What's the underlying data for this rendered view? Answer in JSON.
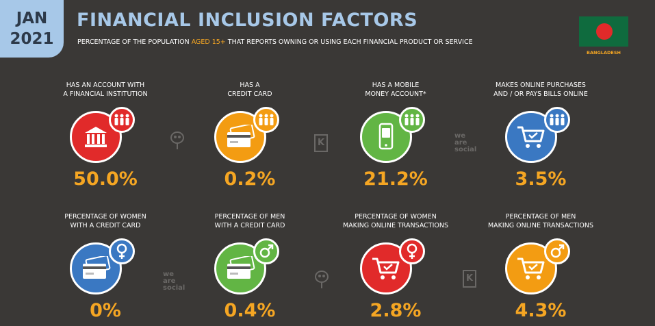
{
  "header": {
    "month": "JAN",
    "year": "2021",
    "title": "FINANCIAL INCLUSION FACTORS",
    "subtitle_pre": "PERCENTAGE OF THE POPULATION ",
    "subtitle_highlight": "AGED 15+",
    "subtitle_post": " THAT REPORTS OWNING OR USING EACH FINANCIAL PRODUCT OR SERVICE",
    "country": "BANGLADESH"
  },
  "colors": {
    "background": "#3a3836",
    "accent_blue": "#a7c8e8",
    "accent_orange": "#f5a623",
    "red": "#e12a2a",
    "orange": "#f39c12",
    "green": "#62b544",
    "blue": "#3a78c2",
    "flag_green": "#0f6b3e"
  },
  "watermarks": {
    "we_are_social": "we\nare\nsocial",
    "kepios": "K"
  },
  "chart_data": {
    "type": "table",
    "title": "FINANCIAL INCLUSION FACTORS",
    "unit": "%",
    "items": [
      {
        "label": "HAS AN ACCOUNT WITH\nA FINANCIAL INSTITUTION",
        "value": 50.0,
        "display": "50.0%",
        "color": "#e12a2a",
        "icon": "bank-icon",
        "badge": "people-icon"
      },
      {
        "label": "HAS A\nCREDIT CARD",
        "value": 0.2,
        "display": "0.2%",
        "color": "#f39c12",
        "icon": "credit-card-icon",
        "badge": "people-icon"
      },
      {
        "label": "HAS A MOBILE\nMONEY ACCOUNT*",
        "value": 21.2,
        "display": "21.2%",
        "color": "#62b544",
        "icon": "mobile-money-icon",
        "badge": "people-icon"
      },
      {
        "label": "MAKES ONLINE PURCHASES\nAND / OR PAYS BILLS ONLINE",
        "value": 3.5,
        "display": "3.5%",
        "color": "#3a78c2",
        "icon": "shopping-cart-icon",
        "badge": "people-icon"
      },
      {
        "label": "PERCENTAGE OF WOMEN\nWITH A CREDIT CARD",
        "value": 0,
        "display": "0%",
        "color": "#3a78c2",
        "icon": "credit-card-icon",
        "badge": "female-icon"
      },
      {
        "label": "PERCENTAGE OF MEN\nWITH A CREDIT CARD",
        "value": 0.4,
        "display": "0.4%",
        "color": "#62b544",
        "icon": "credit-card-icon",
        "badge": "male-icon"
      },
      {
        "label": "PERCENTAGE OF WOMEN\nMAKING ONLINE TRANSACTIONS",
        "value": 2.8,
        "display": "2.8%",
        "color": "#e12a2a",
        "icon": "shopping-cart-icon",
        "badge": "female-icon"
      },
      {
        "label": "PERCENTAGE OF MEN\nMAKING ONLINE TRANSACTIONS",
        "value": 4.3,
        "display": "4.3%",
        "color": "#f39c12",
        "icon": "shopping-cart-icon",
        "badge": "male-icon"
      }
    ]
  }
}
